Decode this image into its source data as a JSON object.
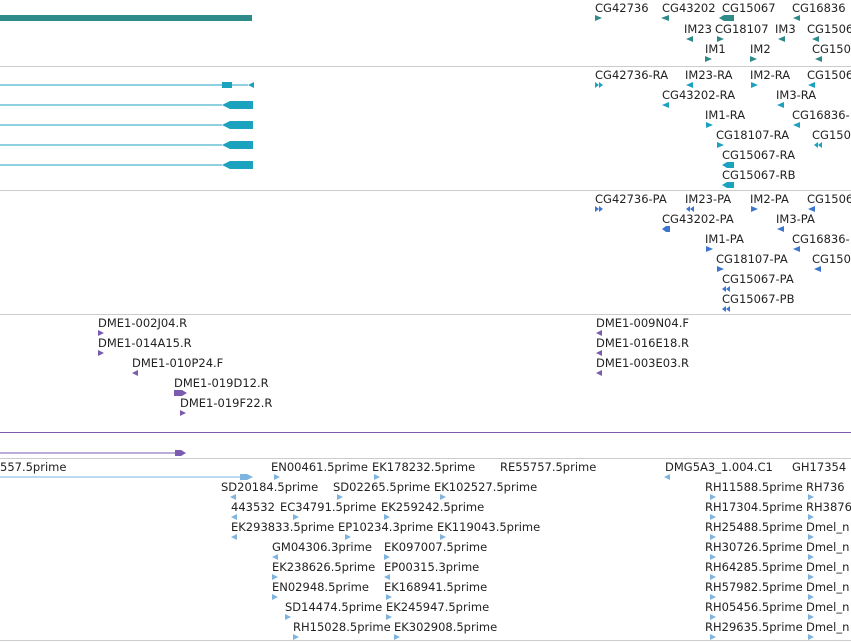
{
  "colors": {
    "gene": "#2f8a8a",
    "transcript": "#1ba2bf",
    "protein": "#3d75cf",
    "clone": "#7a5bb0",
    "est": "#7eb4e0",
    "separator": "#cccccc"
  },
  "tracks": {
    "genes": {
      "labels": [
        "CG42736",
        "CG43202",
        "CG15067",
        "CG16836",
        "IM23",
        "CG18107",
        "IM3",
        "CG1506",
        "IM1",
        "IM2",
        "CG150"
      ]
    },
    "transcripts": {
      "labels": [
        "CG42736-RA",
        "IM23-RA",
        "IM2-RA",
        "CG1506",
        "CG43202-RA",
        "IM3-RA",
        "IM1-RA",
        "CG16836-",
        "CG18107-RA",
        "CG150",
        "CG15067-RA",
        "CG15067-RB"
      ]
    },
    "proteins": {
      "labels": [
        "CG42736-PA",
        "IM23-PA",
        "IM2-PA",
        "CG1506",
        "CG43202-PA",
        "IM3-PA",
        "IM1-PA",
        "CG16836-",
        "CG18107-PA",
        "CG150",
        "CG15067-PA",
        "CG15067-PB"
      ]
    },
    "clones": {
      "labels": [
        "DME1-002J04.R",
        "DME1-014A15.R",
        "DME1-010P24.F",
        "DME1-019D12.R",
        "DME1-019F22.R",
        "DME1-009N04.F",
        "DME1-016E18.R",
        "DME1-003E03.R"
      ]
    },
    "ests": {
      "labels": [
        "557.5prime",
        "EN00461.5prime",
        "EK178232.5prime",
        "RE55757.5prime",
        "DMG5A3_1.004.C1",
        "GH17354",
        "SD20184.5prime",
        "SD02265.5prime",
        "EK102527.5prime",
        "RH11588.5prime",
        "RH736",
        "443532",
        "EC34791.5prime",
        "EK259242.5prime",
        "RH17304.5prime",
        "RH3876",
        "EK293833.5prime",
        "EP10234.3prime",
        "EK119043.5prime",
        "RH25488.5prime",
        "Dmel_n",
        "GM04306.3prime",
        "EK097007.5prime",
        "RH30726.5prime",
        "Dmel_n",
        "EK238626.5prime",
        "EP00315.3prime",
        "RH64285.5prime",
        "Dmel_n",
        "EN02948.5prime",
        "EK168941.5prime",
        "RH57982.5prime",
        "Dmel_n",
        "SD14474.5prime",
        "EK245947.5prime",
        "RH05456.5prime",
        "Dmel_n",
        "RH15028.5prime",
        "EK302908.5prime",
        "RH29635.5prime",
        "Dmel_n"
      ]
    }
  }
}
